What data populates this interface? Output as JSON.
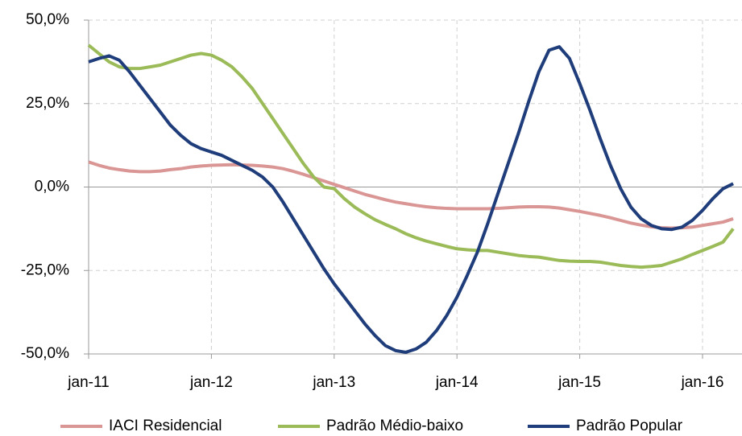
{
  "chart_data": {
    "type": "line",
    "categories": [
      "jan-11",
      null,
      null,
      null,
      null,
      null,
      null,
      null,
      null,
      null,
      null,
      null,
      "jan-12",
      null,
      null,
      null,
      null,
      null,
      null,
      null,
      null,
      null,
      null,
      null,
      "jan-13",
      null,
      null,
      null,
      null,
      null,
      null,
      null,
      null,
      null,
      null,
      null,
      "jan-14",
      null,
      null,
      null,
      null,
      null,
      null,
      null,
      null,
      null,
      null,
      null,
      "jan-15",
      null,
      null,
      null,
      null,
      null,
      null,
      null,
      null,
      null,
      null,
      null,
      "jan-16",
      null,
      null,
      null
    ],
    "series": [
      {
        "name": "IACI Residencial",
        "color": "#d99694",
        "values": [
          7.5,
          6.5,
          5.7,
          5.2,
          4.8,
          4.6,
          4.6,
          4.8,
          5.2,
          5.5,
          6,
          6.3,
          6.5,
          6.6,
          6.7,
          6.6,
          6.5,
          6.3,
          6,
          5.5,
          4.7,
          3.8,
          2.8,
          1.8,
          0.8,
          -0.2,
          -1.2,
          -2.2,
          -3,
          -3.8,
          -4.5,
          -5,
          -5.5,
          -5.9,
          -6.2,
          -6.4,
          -6.5,
          -6.5,
          -6.5,
          -6.5,
          -6.4,
          -6.2,
          -6,
          -5.9,
          -5.9,
          -6,
          -6.3,
          -6.8,
          -7.3,
          -7.9,
          -8.5,
          -9.2,
          -10,
          -10.8,
          -11.4,
          -11.9,
          -12.2,
          -12.3,
          -12.2,
          -12,
          -11.5,
          -11,
          -10.5,
          -9.5
        ]
      },
      {
        "name": "Padrão Médio-baixo",
        "color": "#9bbb59",
        "values": [
          42.5,
          40,
          37.5,
          36,
          35.5,
          35.5,
          36,
          36.5,
          37.5,
          38.5,
          39.5,
          40,
          39.5,
          38,
          36,
          33,
          29.5,
          25,
          20.5,
          16,
          11.5,
          7,
          3,
          0,
          -0.5,
          -3.5,
          -6,
          -8,
          -9.8,
          -11.2,
          -12.5,
          -14,
          -15.2,
          -16.2,
          -17,
          -17.8,
          -18.5,
          -18.8,
          -19,
          -19,
          -19.5,
          -20,
          -20.5,
          -20.8,
          -21,
          -21.5,
          -22,
          -22.2,
          -22.3,
          -22.3,
          -22.5,
          -23,
          -23.5,
          -23.8,
          -24,
          -23.8,
          -23.5,
          -22.5,
          -21.5,
          -20.2,
          -19,
          -17.8,
          -16.5,
          -12.5
        ]
      },
      {
        "name": "Padrão Popular",
        "color": "#1f3d7a",
        "values": [
          37.5,
          38.5,
          39.3,
          38,
          34.5,
          30.5,
          26.5,
          22.5,
          18.5,
          15.5,
          13,
          11.5,
          10.5,
          9.5,
          8,
          6.5,
          5,
          3,
          0,
          -4.5,
          -9.5,
          -14.5,
          -19.5,
          -24.5,
          -29,
          -33,
          -37,
          -41,
          -44.5,
          -47.5,
          -49,
          -49.5,
          -48.5,
          -46.5,
          -43,
          -38.5,
          -33,
          -26.5,
          -19.5,
          -11,
          -2,
          7,
          16,
          25.5,
          34.5,
          41,
          42,
          38.5,
          31,
          23,
          14.5,
          6.5,
          -0.5,
          -6,
          -9.5,
          -11.5,
          -12.5,
          -12.7,
          -12,
          -10,
          -7,
          -3.5,
          -0.5,
          1
        ]
      }
    ],
    "ylim": [
      -50,
      50
    ],
    "yticks": [
      {
        "value": -50,
        "label": "-50,0%"
      },
      {
        "value": -25,
        "label": "-25,0%"
      },
      {
        "value": 0,
        "label": "0,0%"
      },
      {
        "value": 25,
        "label": "25,0%"
      },
      {
        "value": 50,
        "label": "50,0%"
      }
    ],
    "grid": true
  }
}
